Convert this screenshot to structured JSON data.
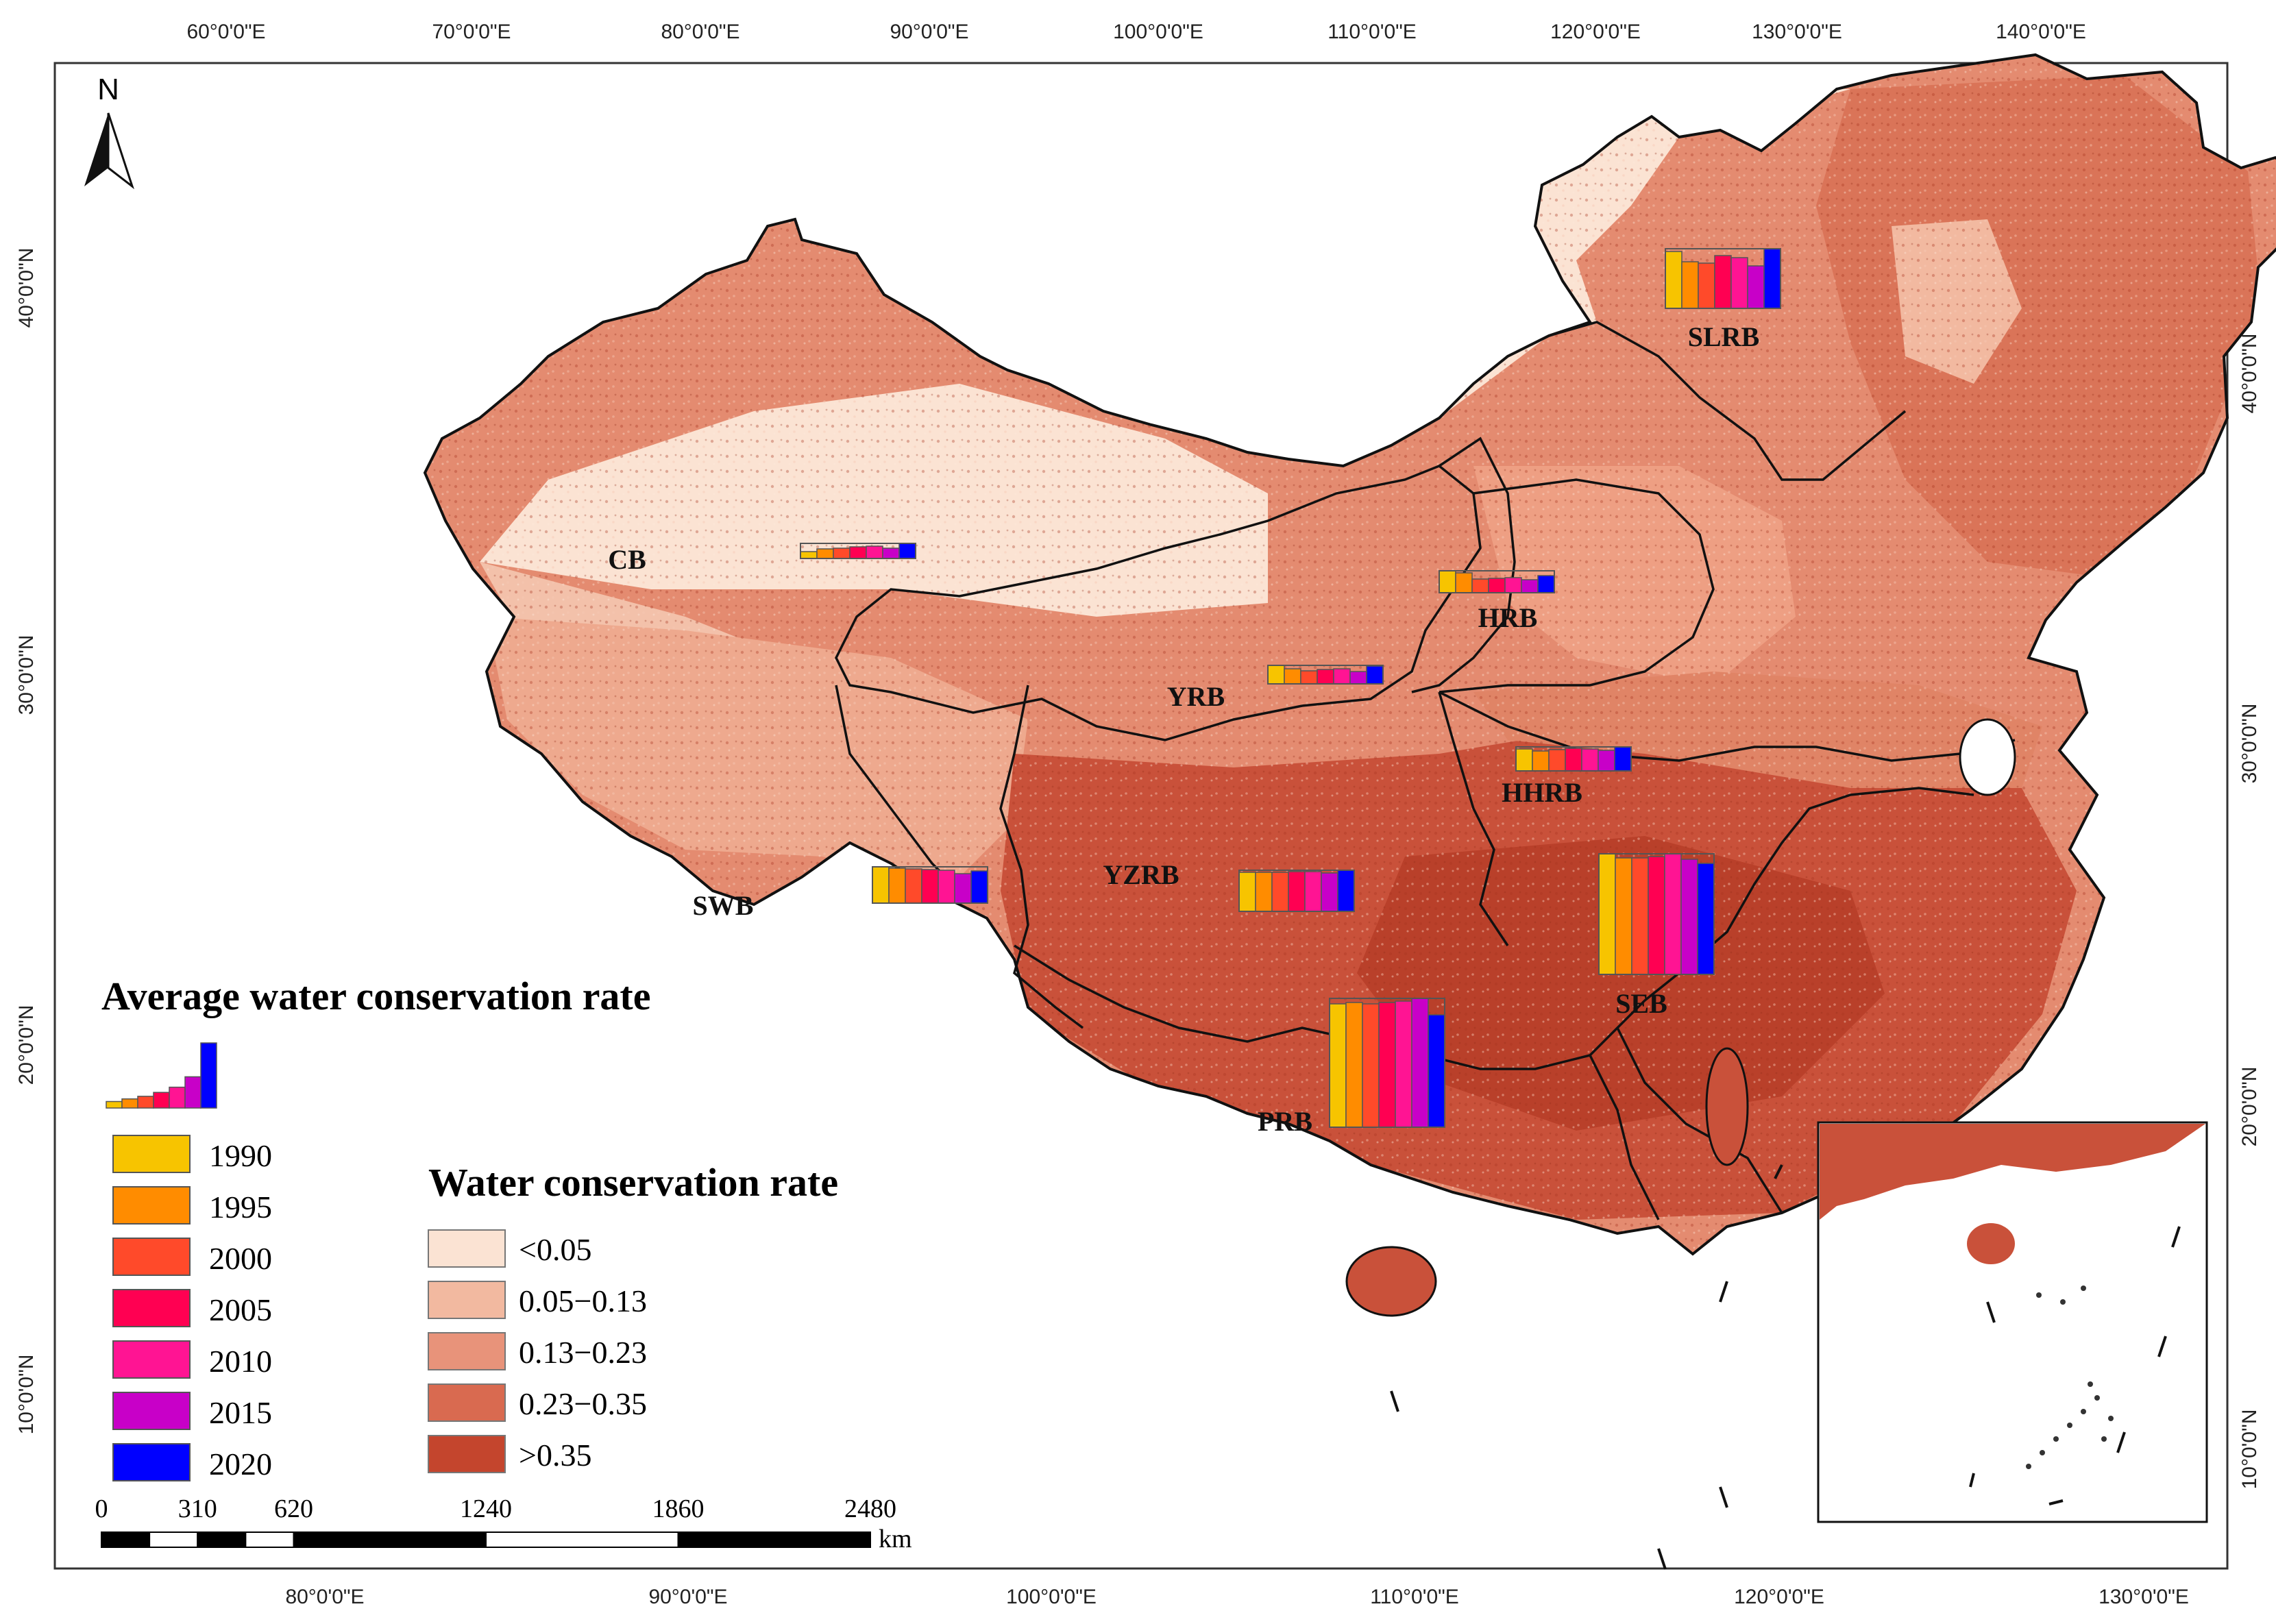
{
  "map": {
    "top_lon_ticks": [
      "60°0'0\"E",
      "70°0'0\"E",
      "80°0'0\"E",
      "90°0'0\"E",
      "100°0'0\"E",
      "110°0'0\"E",
      "120°0'0\"E",
      "130°0'0\"E",
      "140°0'0\"E"
    ],
    "bottom_lon_ticks": [
      "80°0'0\"E",
      "90°0'0\"E",
      "100°0'0\"E",
      "110°0'0\"E",
      "120°0'0\"E",
      "130°0'0\"E"
    ],
    "left_lat_ticks": [
      "40°0'0\"N",
      "30°0'0\"N",
      "20°0'0\"N",
      "10°0'0\"N"
    ],
    "right_lat_ticks": [
      "40°0'0\"N",
      "30°0'0\"N",
      "20°0'0\"N",
      "10°0'0\"N"
    ],
    "north_label": "N",
    "colors": {
      "class1": "#fbe3d3",
      "class2": "#f2b9a0",
      "class3": "#e8937a",
      "class4": "#d96a50",
      "class5": "#c4452d",
      "boundary": "#111111",
      "frame": "#333333"
    }
  },
  "basins": [
    {
      "code": "SLRB",
      "bars": [
        0.83,
        0.68,
        0.66,
        0.77,
        0.74,
        0.62,
        0.87
      ]
    },
    {
      "code": "CB",
      "bars": [
        0.1,
        0.14,
        0.15,
        0.17,
        0.18,
        0.15,
        0.22
      ]
    },
    {
      "code": "HRB",
      "bars": [
        0.32,
        0.29,
        0.2,
        0.21,
        0.22,
        0.19,
        0.25
      ]
    },
    {
      "code": "YRB",
      "bars": [
        0.27,
        0.22,
        0.19,
        0.21,
        0.22,
        0.18,
        0.26
      ]
    },
    {
      "code": "HHRB",
      "bars": [
        0.32,
        0.29,
        0.31,
        0.33,
        0.32,
        0.3,
        0.35
      ]
    },
    {
      "code": "SWB",
      "bars": [
        0.53,
        0.51,
        0.5,
        0.49,
        0.48,
        0.43,
        0.47
      ]
    },
    {
      "code": "YZRB",
      "bars": [
        0.57,
        0.57,
        0.57,
        0.58,
        0.58,
        0.56,
        0.6
      ]
    },
    {
      "code": "SEB",
      "bars": [
        0.88,
        0.85,
        0.85,
        0.86,
        0.88,
        0.84,
        0.81
      ]
    },
    {
      "code": "PRB",
      "bars": [
        0.9,
        0.91,
        0.9,
        0.91,
        0.92,
        0.94,
        0.82
      ]
    }
  ],
  "legend_avg": {
    "title": "Average water conservation rate",
    "years": [
      "1990",
      "1995",
      "2000",
      "2005",
      "2010",
      "2015",
      "2020"
    ],
    "year_colors": [
      "#f7c400",
      "#ff8c00",
      "#ff4a2a",
      "#ff0052",
      "#ff1493",
      "#c800c8",
      "#0000ff"
    ],
    "sample_bars": [
      0.1,
      0.14,
      0.18,
      0.24,
      0.32,
      0.48,
      1.0
    ]
  },
  "legend_rate": {
    "title": "Water conservation rate",
    "classes": [
      "<0.05",
      "0.05−0.13",
      "0.13−0.23",
      "0.23−0.35",
      ">0.35"
    ]
  },
  "scale_bar": {
    "labels": [
      "0",
      "310",
      "620",
      "1240",
      "1860",
      "2480"
    ],
    "unit": "km"
  }
}
